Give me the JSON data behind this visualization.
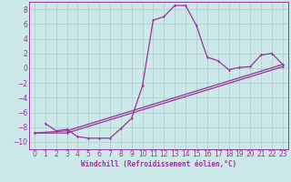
{
  "background_color": "#cce8e8",
  "grid_color": "#aacccc",
  "line_color": "#993399",
  "spine_color": "#993399",
  "xlim": [
    -0.5,
    23.5
  ],
  "ylim": [
    -11,
    9
  ],
  "yticks": [
    -10,
    -8,
    -6,
    -4,
    -2,
    0,
    2,
    4,
    6,
    8
  ],
  "xticks": [
    0,
    1,
    2,
    3,
    4,
    5,
    6,
    7,
    8,
    9,
    10,
    11,
    12,
    13,
    14,
    15,
    16,
    17,
    18,
    19,
    20,
    21,
    22,
    23
  ],
  "xlabel": "Windchill (Refroidissement éolien,°C)",
  "curve1_x": [
    1,
    2,
    3,
    4,
    5,
    6,
    7,
    8,
    9,
    10,
    11,
    12,
    13,
    14,
    15,
    16,
    17,
    18,
    19,
    20,
    21,
    22,
    23
  ],
  "curve1_y": [
    -7.5,
    -8.5,
    -8.3,
    -9.3,
    -9.5,
    -9.5,
    -9.5,
    -8.2,
    -6.8,
    -2.4,
    6.5,
    7.0,
    8.5,
    8.5,
    5.8,
    1.5,
    1.0,
    -0.2,
    0.1,
    0.2,
    1.8,
    2.0,
    0.5
  ],
  "curve2_x": [
    0,
    3,
    23
  ],
  "curve2_y": [
    -8.8,
    -8.5,
    0.5
  ],
  "curve3_x": [
    0,
    3,
    23
  ],
  "curve3_y": [
    -8.8,
    -8.8,
    0.2
  ],
  "tick_fontsize": 5.5,
  "xlabel_fontsize": 5.5,
  "lw": 0.9,
  "ms": 2.0
}
